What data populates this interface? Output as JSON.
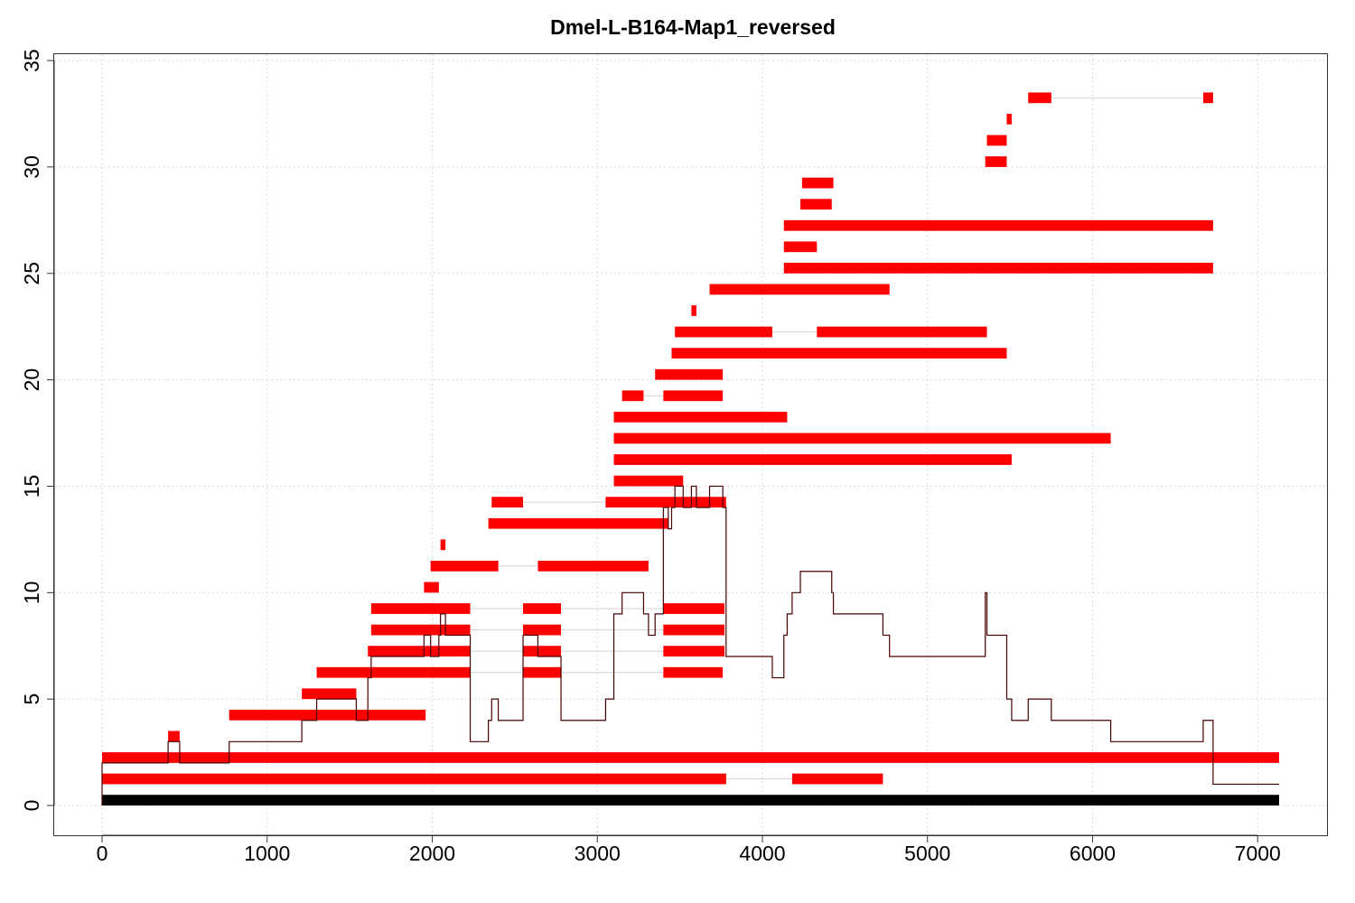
{
  "chart_data": {
    "type": "bar",
    "title": "Dmel-L-B164-Map1_reversed",
    "xlabel": "",
    "ylabel": "",
    "xlim": [
      -290,
      7420
    ],
    "ylim": [
      -1.4,
      35.3
    ],
    "x_ticks": [
      0,
      1000,
      2000,
      3000,
      4000,
      5000,
      6000,
      7000
    ],
    "y_ticks": [
      0,
      5,
      10,
      15,
      20,
      25,
      30,
      35
    ],
    "grid": true,
    "colors": {
      "segment": "#ff0000",
      "link": "#d3d3d3",
      "coverage": "#4a0000",
      "reference": "#000000",
      "grid": "#d9d9d9"
    },
    "reference": {
      "start": 0,
      "end": 7130,
      "y": 0.25
    },
    "segment_rows": [
      {
        "y": 1.25,
        "parts": [
          [
            0,
            3780
          ],
          [
            4180,
            4730
          ]
        ]
      },
      {
        "y": 2.25,
        "parts": [
          [
            0,
            7130
          ]
        ]
      },
      {
        "y": 3.25,
        "parts": [
          [
            400,
            470
          ]
        ]
      },
      {
        "y": 4.25,
        "parts": [
          [
            770,
            1960
          ]
        ]
      },
      {
        "y": 5.25,
        "parts": [
          [
            1210,
            1540
          ]
        ]
      },
      {
        "y": 6.25,
        "parts": [
          [
            1300,
            2230
          ],
          [
            2550,
            2780
          ],
          [
            3400,
            3760
          ]
        ]
      },
      {
        "y": 7.25,
        "parts": [
          [
            1610,
            2230
          ],
          [
            2550,
            2780
          ],
          [
            3400,
            3770
          ]
        ]
      },
      {
        "y": 8.25,
        "parts": [
          [
            1630,
            2230
          ],
          [
            2550,
            2780
          ],
          [
            3400,
            3770
          ]
        ]
      },
      {
        "y": 9.25,
        "parts": [
          [
            1630,
            2230
          ],
          [
            2550,
            2780
          ],
          [
            3400,
            3770
          ]
        ]
      },
      {
        "y": 10.25,
        "parts": [
          [
            1950,
            2040
          ]
        ]
      },
      {
        "y": 11.25,
        "parts": [
          [
            1990,
            2400
          ],
          [
            2640,
            3310
          ]
        ]
      },
      {
        "y": 12.25,
        "parts": [
          [
            2050,
            2080
          ]
        ]
      },
      {
        "y": 13.25,
        "parts": [
          [
            2340,
            3430
          ]
        ]
      },
      {
        "y": 14.25,
        "parts": [
          [
            2360,
            2550
          ],
          [
            3050,
            3780
          ]
        ]
      },
      {
        "y": 15.25,
        "parts": [
          [
            3100,
            3520
          ]
        ]
      },
      {
        "y": 16.25,
        "parts": [
          [
            3100,
            5510
          ]
        ]
      },
      {
        "y": 17.25,
        "parts": [
          [
            3100,
            6110
          ]
        ]
      },
      {
        "y": 18.25,
        "parts": [
          [
            3100,
            4150
          ]
        ]
      },
      {
        "y": 19.25,
        "parts": [
          [
            3150,
            3280
          ],
          [
            3400,
            3760
          ]
        ]
      },
      {
        "y": 20.25,
        "parts": [
          [
            3350,
            3760
          ]
        ]
      },
      {
        "y": 21.25,
        "parts": [
          [
            3450,
            5480
          ]
        ]
      },
      {
        "y": 22.25,
        "parts": [
          [
            3470,
            4060
          ],
          [
            4330,
            5360
          ]
        ]
      },
      {
        "y": 23.25,
        "parts": [
          [
            3570,
            3600
          ]
        ]
      },
      {
        "y": 24.25,
        "parts": [
          [
            3680,
            4770
          ]
        ]
      },
      {
        "y": 25.25,
        "parts": [
          [
            4130,
            6730
          ]
        ]
      },
      {
        "y": 26.25,
        "parts": [
          [
            4130,
            4330
          ]
        ]
      },
      {
        "y": 27.25,
        "parts": [
          [
            4130,
            6730
          ]
        ]
      },
      {
        "y": 28.25,
        "parts": [
          [
            4230,
            4420
          ]
        ]
      },
      {
        "y": 29.25,
        "parts": [
          [
            4240,
            4430
          ]
        ]
      },
      {
        "y": 30.25,
        "parts": [
          [
            5350,
            5480
          ]
        ]
      },
      {
        "y": 31.25,
        "parts": [
          [
            5360,
            5480
          ]
        ]
      },
      {
        "y": 32.25,
        "parts": [
          [
            5480,
            5510
          ]
        ]
      },
      {
        "y": 33.25,
        "parts": [
          [
            5610,
            5750
          ],
          [
            6670,
            6730
          ]
        ]
      }
    ],
    "coverage": {
      "x": [
        0,
        400,
        470,
        770,
        1210,
        1300,
        1540,
        1610,
        1630,
        1950,
        1990,
        2040,
        2050,
        2080,
        2230,
        2340,
        2360,
        2400,
        2550,
        2640,
        2780,
        3050,
        3100,
        3150,
        3280,
        3310,
        3350,
        3400,
        3430,
        3450,
        3470,
        3520,
        3570,
        3600,
        3680,
        3760,
        3780,
        4060,
        4130,
        4150,
        4180,
        4230,
        4240,
        4330,
        4420,
        4430,
        4730,
        4770,
        5350,
        5360,
        5480,
        5510,
        5610,
        5750,
        6110,
        6670,
        6730,
        7130
      ],
      "y": [
        2,
        3,
        2,
        3,
        4,
        5,
        4,
        6,
        7,
        8,
        7,
        8,
        9,
        8,
        3,
        4,
        5,
        4,
        8,
        7,
        4,
        5,
        9,
        10,
        9,
        8,
        9,
        14,
        13,
        14,
        15,
        14,
        15,
        14,
        15,
        14,
        7,
        6,
        8,
        9,
        10,
        11,
        11,
        11,
        10,
        9,
        8,
        7,
        10,
        8,
        5,
        4,
        5,
        4,
        3,
        4,
        1,
        1
      ]
    }
  }
}
